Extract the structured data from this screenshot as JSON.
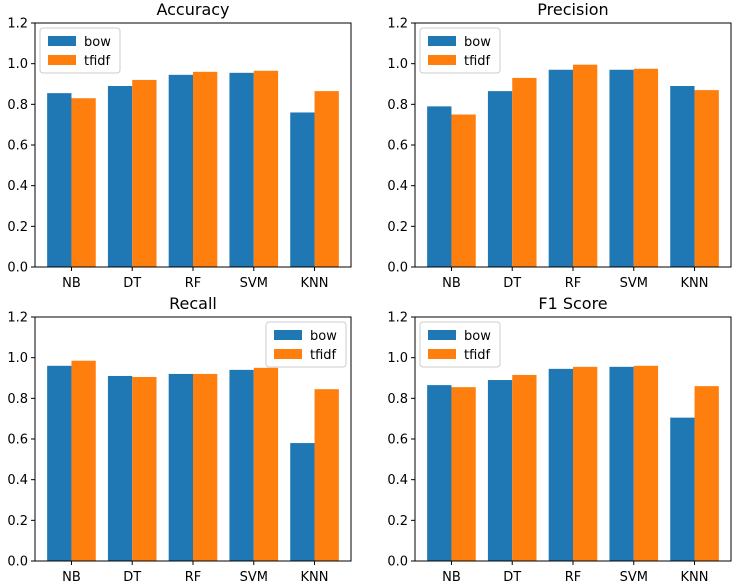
{
  "colors": {
    "bow": "#1f77b4",
    "tfidf": "#ff7f0e"
  },
  "chart_data": [
    {
      "type": "bar",
      "title": "Accuracy",
      "categories": [
        "NB",
        "DT",
        "RF",
        "SVM",
        "KNN"
      ],
      "series": [
        {
          "name": "bow",
          "values": [
            0.855,
            0.89,
            0.945,
            0.955,
            0.76
          ]
        },
        {
          "name": "tfidf",
          "values": [
            0.83,
            0.92,
            0.96,
            0.965,
            0.865
          ]
        }
      ],
      "ylim": [
        0,
        1.2
      ],
      "yticks": [
        "0.0",
        "0.2",
        "0.4",
        "0.6",
        "0.8",
        "1.0",
        "1.2"
      ],
      "legend": "top-left",
      "grid": false
    },
    {
      "type": "bar",
      "title": "Precision",
      "categories": [
        "NB",
        "DT",
        "RF",
        "SVM",
        "KNN"
      ],
      "series": [
        {
          "name": "bow",
          "values": [
            0.79,
            0.865,
            0.97,
            0.97,
            0.89
          ]
        },
        {
          "name": "tfidf",
          "values": [
            0.75,
            0.93,
            0.995,
            0.975,
            0.87
          ]
        }
      ],
      "ylim": [
        0,
        1.2
      ],
      "yticks": [
        "0.0",
        "0.2",
        "0.4",
        "0.6",
        "0.8",
        "1.0",
        "1.2"
      ],
      "legend": "top-left",
      "grid": false
    },
    {
      "type": "bar",
      "title": "Recall",
      "categories": [
        "NB",
        "DT",
        "RF",
        "SVM",
        "KNN"
      ],
      "series": [
        {
          "name": "bow",
          "values": [
            0.96,
            0.91,
            0.92,
            0.94,
            0.58
          ]
        },
        {
          "name": "tfidf",
          "values": [
            0.985,
            0.905,
            0.92,
            0.95,
            0.845
          ]
        }
      ],
      "ylim": [
        0,
        1.2
      ],
      "yticks": [
        "0.0",
        "0.2",
        "0.4",
        "0.6",
        "0.8",
        "1.0",
        "1.2"
      ],
      "legend": "top-right",
      "grid": false
    },
    {
      "type": "bar",
      "title": "F1 Score",
      "categories": [
        "NB",
        "DT",
        "RF",
        "SVM",
        "KNN"
      ],
      "series": [
        {
          "name": "bow",
          "values": [
            0.865,
            0.89,
            0.945,
            0.955,
            0.705
          ]
        },
        {
          "name": "tfidf",
          "values": [
            0.855,
            0.915,
            0.955,
            0.96,
            0.86
          ]
        }
      ],
      "ylim": [
        0,
        1.2
      ],
      "yticks": [
        "0.0",
        "0.2",
        "0.4",
        "0.6",
        "0.8",
        "1.0",
        "1.2"
      ],
      "legend": "top-left",
      "grid": false
    }
  ]
}
